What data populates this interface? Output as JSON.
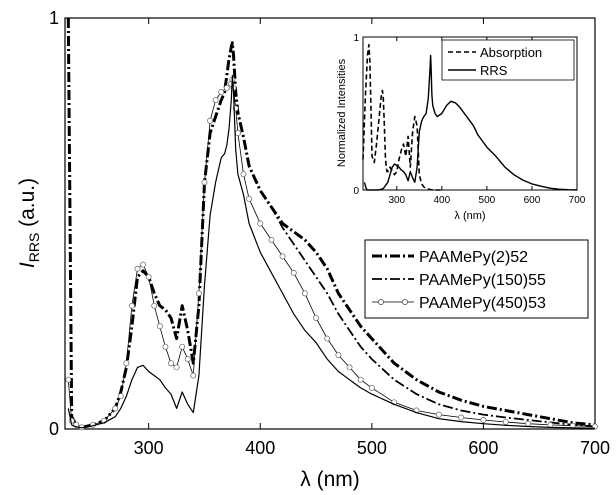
{
  "chart_data": [
    {
      "type": "line",
      "title": "",
      "xlabel": "λ (nm)",
      "ylabel": "I",
      "ylabel_sub": "RRS",
      "ylabel_suffix": " (a.u.)",
      "xlim": [
        225,
        700
      ],
      "ylim": [
        0,
        1
      ],
      "x_ticks": [
        300,
        400,
        500,
        600,
        700
      ],
      "y_ticks": [
        0,
        1
      ],
      "grid": false,
      "legend_placement": "right-center",
      "series": [
        {
          "name": "PAAMePy(2)52",
          "style": "thick-dashdot",
          "x": [
            228,
            231,
            235,
            240,
            250,
            260,
            270,
            275,
            280,
            285,
            290,
            295,
            300,
            305,
            310,
            315,
            320,
            325,
            330,
            335,
            340,
            345,
            350,
            355,
            360,
            365,
            368,
            370,
            372,
            374,
            375,
            376,
            378,
            380,
            385,
            390,
            400,
            410,
            420,
            430,
            440,
            450,
            460,
            470,
            480,
            490,
            500,
            520,
            540,
            560,
            580,
            600,
            620,
            640,
            660,
            680,
            700
          ],
          "y": [
            1.0,
            0.03,
            0.01,
            0.004,
            0.01,
            0.02,
            0.05,
            0.09,
            0.15,
            0.25,
            0.37,
            0.385,
            0.37,
            0.33,
            0.3,
            0.29,
            0.27,
            0.22,
            0.3,
            0.24,
            0.16,
            0.3,
            0.6,
            0.72,
            0.76,
            0.8,
            0.82,
            0.86,
            0.9,
            0.93,
            0.94,
            0.91,
            0.82,
            0.77,
            0.71,
            0.64,
            0.58,
            0.54,
            0.5,
            0.48,
            0.46,
            0.43,
            0.39,
            0.33,
            0.29,
            0.25,
            0.22,
            0.16,
            0.12,
            0.09,
            0.07,
            0.055,
            0.045,
            0.035,
            0.025,
            0.015,
            0.01
          ]
        },
        {
          "name": "PAAMePy(150)55",
          "style": "medium-dashdot",
          "x": [
            228,
            231,
            235,
            240,
            250,
            260,
            270,
            275,
            280,
            285,
            290,
            295,
            300,
            305,
            310,
            315,
            320,
            325,
            330,
            335,
            340,
            345,
            350,
            355,
            360,
            365,
            368,
            370,
            372,
            374,
            375,
            376,
            378,
            380,
            385,
            390,
            400,
            410,
            420,
            430,
            440,
            450,
            460,
            470,
            480,
            490,
            500,
            520,
            540,
            560,
            580,
            600,
            620,
            640,
            660,
            680,
            700
          ],
          "y": [
            1.0,
            0.03,
            0.01,
            0.004,
            0.01,
            0.02,
            0.05,
            0.09,
            0.15,
            0.25,
            0.37,
            0.385,
            0.37,
            0.33,
            0.3,
            0.29,
            0.27,
            0.22,
            0.3,
            0.24,
            0.16,
            0.3,
            0.6,
            0.72,
            0.76,
            0.8,
            0.82,
            0.86,
            0.9,
            0.93,
            0.94,
            0.91,
            0.82,
            0.77,
            0.71,
            0.64,
            0.58,
            0.54,
            0.49,
            0.45,
            0.41,
            0.37,
            0.33,
            0.28,
            0.24,
            0.2,
            0.17,
            0.12,
            0.085,
            0.06,
            0.045,
            0.035,
            0.028,
            0.022,
            0.016,
            0.01,
            0.006
          ]
        },
        {
          "name": "PAAMePy(450)53",
          "style": "thin-circles",
          "x": [
            228,
            231,
            235,
            240,
            250,
            260,
            270,
            275,
            280,
            285,
            290,
            295,
            300,
            305,
            310,
            315,
            320,
            325,
            330,
            335,
            340,
            345,
            350,
            355,
            360,
            365,
            370,
            374,
            375,
            376,
            378,
            380,
            385,
            390,
            400,
            410,
            420,
            430,
            440,
            450,
            460,
            470,
            480,
            490,
            500,
            520,
            540,
            560,
            580,
            600,
            620,
            640,
            660,
            680,
            700
          ],
          "y": [
            0.12,
            0.02,
            0.01,
            0.004,
            0.01,
            0.02,
            0.05,
            0.08,
            0.16,
            0.3,
            0.39,
            0.4,
            0.37,
            0.3,
            0.25,
            0.2,
            0.16,
            0.15,
            0.2,
            0.17,
            0.13,
            0.33,
            0.6,
            0.75,
            0.8,
            0.82,
            0.83,
            0.84,
            0.85,
            0.83,
            0.78,
            0.72,
            0.62,
            0.56,
            0.5,
            0.46,
            0.42,
            0.38,
            0.33,
            0.27,
            0.22,
            0.18,
            0.15,
            0.12,
            0.1,
            0.065,
            0.045,
            0.035,
            0.028,
            0.022,
            0.017,
            0.013,
            0.01,
            0.008,
            0.006
          ]
        },
        {
          "name": "",
          "style": "thin-solid",
          "x": [
            228,
            231,
            235,
            240,
            250,
            260,
            270,
            275,
            280,
            285,
            290,
            295,
            300,
            305,
            310,
            315,
            320,
            325,
            330,
            335,
            340,
            345,
            350,
            355,
            360,
            365,
            368,
            370,
            372,
            374,
            375,
            376,
            378,
            380,
            385,
            390,
            400,
            410,
            420,
            430,
            440,
            450,
            460,
            470,
            480,
            490,
            500,
            520,
            540,
            560,
            580,
            600,
            620,
            640,
            660,
            680,
            700
          ],
          "y": [
            0.05,
            0.01,
            0.005,
            0.003,
            0.008,
            0.015,
            0.03,
            0.05,
            0.08,
            0.12,
            0.15,
            0.155,
            0.14,
            0.13,
            0.12,
            0.1,
            0.085,
            0.05,
            0.09,
            0.06,
            0.04,
            0.13,
            0.35,
            0.52,
            0.6,
            0.66,
            0.67,
            0.69,
            0.73,
            0.8,
            0.86,
            0.82,
            0.68,
            0.62,
            0.57,
            0.5,
            0.43,
            0.38,
            0.33,
            0.28,
            0.24,
            0.21,
            0.17,
            0.14,
            0.12,
            0.1,
            0.085,
            0.06,
            0.04,
            0.025,
            0.018,
            0.013,
            0.009,
            0.006,
            0.004,
            0.003,
            0.002
          ]
        }
      ]
    },
    {
      "type": "line",
      "title": "",
      "xlabel": "λ (nm)",
      "ylabel": "Normalized Intensities",
      "xlim": [
        225,
        700
      ],
      "ylim": [
        0,
        1
      ],
      "x_ticks": [
        300,
        400,
        500,
        600,
        700
      ],
      "y_ticks": [
        0,
        1
      ],
      "grid": false,
      "legend_placement": "top-right",
      "series": [
        {
          "name": "Absorption",
          "style": "dashed",
          "x": [
            225,
            230,
            235,
            238,
            240,
            243,
            245,
            250,
            255,
            260,
            265,
            268,
            270,
            272,
            275,
            278,
            280,
            285,
            290,
            295,
            300,
            305,
            310,
            315,
            320,
            325,
            330,
            335,
            340,
            345,
            350,
            355,
            360,
            365,
            370,
            380,
            400
          ],
          "y": [
            0.2,
            0.6,
            0.88,
            0.95,
            0.85,
            0.5,
            0.22,
            0.18,
            0.3,
            0.45,
            0.6,
            0.65,
            0.6,
            0.45,
            0.2,
            0.12,
            0.12,
            0.15,
            0.12,
            0.1,
            0.12,
            0.2,
            0.26,
            0.3,
            0.22,
            0.35,
            0.15,
            0.38,
            0.48,
            0.42,
            0.1,
            0.04,
            0.02,
            0.01,
            0.005,
            0.0,
            0.0
          ]
        },
        {
          "name": "RRS",
          "style": "solid",
          "x": [
            228,
            232,
            235,
            240,
            250,
            260,
            270,
            280,
            285,
            290,
            295,
            300,
            305,
            310,
            315,
            320,
            325,
            330,
            335,
            340,
            345,
            350,
            355,
            360,
            365,
            370,
            374,
            375,
            376,
            378,
            380,
            385,
            390,
            400,
            410,
            420,
            430,
            440,
            450,
            460,
            470,
            480,
            490,
            500,
            520,
            540,
            560,
            580,
            600,
            620,
            640,
            660,
            680,
            700
          ],
          "y": [
            0.05,
            0.01,
            0.0,
            0.0,
            0.0,
            0.0,
            0.01,
            0.05,
            0.1,
            0.15,
            0.17,
            0.16,
            0.15,
            0.13,
            0.12,
            0.1,
            0.06,
            0.12,
            0.08,
            0.05,
            0.15,
            0.38,
            0.45,
            0.48,
            0.5,
            0.6,
            0.8,
            0.88,
            0.82,
            0.62,
            0.55,
            0.5,
            0.48,
            0.5,
            0.55,
            0.58,
            0.57,
            0.54,
            0.5,
            0.46,
            0.42,
            0.36,
            0.32,
            0.28,
            0.22,
            0.15,
            0.1,
            0.065,
            0.04,
            0.025,
            0.012,
            0.005,
            0.002,
            0.0
          ]
        }
      ]
    }
  ]
}
